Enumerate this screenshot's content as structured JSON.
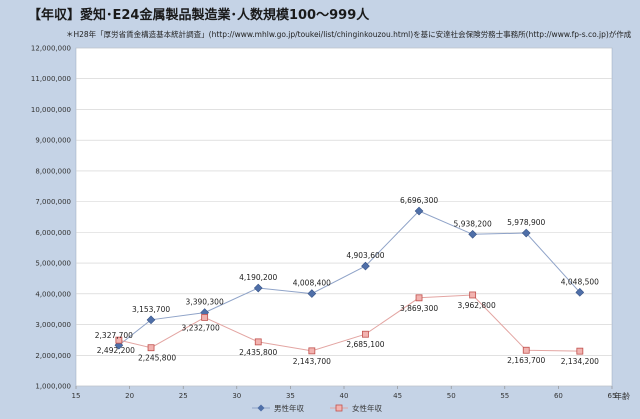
{
  "chart_data": {
    "type": "line",
    "title": "【年収】愛知･E24金属製品製造業･人数規模100～999人",
    "note": "＊H28年「厚労省賃金構造基本統計調査」(http://www.mhlw.go.jp/toukei/list/chinginkouzou.html)を基に安達社会保険労務士事務所(http://www.fp-s.co.jp)が作成",
    "xlabel": "年齢",
    "xlim": [
      15,
      65
    ],
    "ylim": [
      1000000,
      12000000
    ],
    "x_ticks": [
      "15",
      "20",
      "25",
      "30",
      "35",
      "40",
      "45",
      "50",
      "55",
      "60",
      "65"
    ],
    "y_ticks": [
      "1,000,000",
      "2,000,000",
      "3,000,000",
      "4,000,000",
      "5,000,000",
      "6,000,000",
      "7,000,000",
      "8,000,000",
      "9,000,000",
      "10,000,000",
      "11,000,000",
      "12,000,000"
    ],
    "grid": true,
    "legend_position": "bottom",
    "series": [
      {
        "name": "男性年収",
        "color": "#4f6fa8",
        "x": [
          19,
          22,
          27,
          32,
          37,
          42,
          47,
          52,
          57,
          62
        ],
        "values": [
          2327700,
          3153700,
          3390300,
          4190200,
          4008400,
          4903600,
          6696300,
          5938200,
          5978900,
          4048500
        ],
        "labels": [
          "2,327,700",
          "3,153,700",
          "3,390,300",
          "4,190,200",
          "4,008,400",
          "4,903,600",
          "6,696,300",
          "5,938,200",
          "5,978,900",
          "4,048,500"
        ]
      },
      {
        "name": "女性年収",
        "color": "#c0504d",
        "x": [
          19,
          22,
          27,
          32,
          37,
          42,
          47,
          52,
          57,
          62
        ],
        "values": [
          2492200,
          2245800,
          3232700,
          2435800,
          2143700,
          2685100,
          3869300,
          3962800,
          2163700,
          2134200
        ],
        "labels": [
          "2,492,200",
          "2,245,800",
          "3,232,700",
          "2,435,800",
          "2,143,700",
          "2,685,100",
          "3,869,300",
          "3,962,800",
          "2,163,700",
          "2,134,200"
        ]
      }
    ]
  }
}
